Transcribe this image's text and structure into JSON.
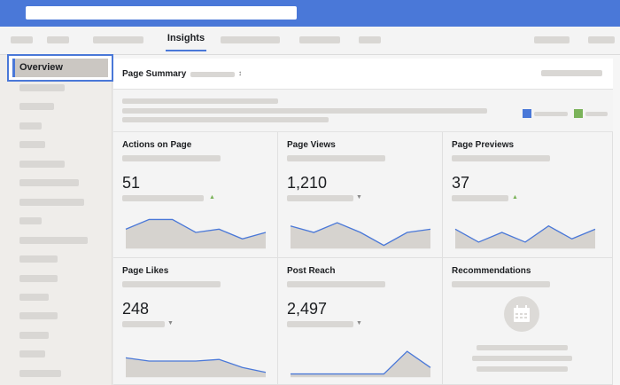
{
  "header": {
    "tabs": {
      "active_label": "Insights"
    }
  },
  "sidebar": {
    "active_item": "Overview",
    "accent_color": "#4a78d8"
  },
  "summary": {
    "title": "Page Summary",
    "caret": "↕",
    "legend_colors": [
      "#4a78d8",
      "#7bb35a"
    ]
  },
  "cards": [
    {
      "title": "Actions on Page",
      "value": "51",
      "trend": "up",
      "trend_glyph": "▲",
      "series": [
        6,
        9,
        9,
        5,
        6,
        3,
        5
      ]
    },
    {
      "title": "Page Views",
      "value": "1,210",
      "trend": "down",
      "trend_glyph": "▼",
      "series": [
        7,
        5,
        8,
        5,
        1,
        5,
        6
      ]
    },
    {
      "title": "Page Previews",
      "value": "37",
      "trend": "up",
      "trend_glyph": "▲",
      "series": [
        6,
        2,
        5,
        2,
        7,
        3,
        6
      ]
    },
    {
      "title": "Page Likes",
      "value": "248",
      "trend": "down",
      "trend_glyph": "▼",
      "series": [
        6,
        5,
        5,
        5,
        5.5,
        3,
        1.5
      ]
    },
    {
      "title": "Post Reach",
      "value": "2,497",
      "trend": "down",
      "trend_glyph": "▼",
      "series": [
        1,
        1,
        1,
        1,
        1,
        8,
        3
      ]
    }
  ],
  "recommendations": {
    "title": "Recommendations"
  }
}
